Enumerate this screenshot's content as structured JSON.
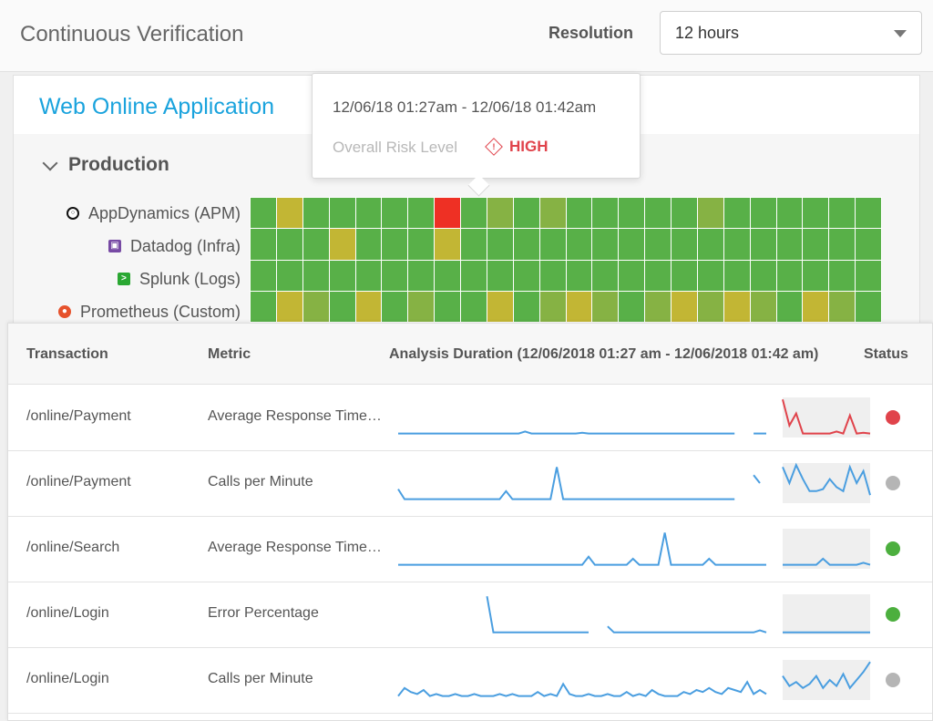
{
  "header": {
    "title": "Continuous Verification",
    "resolution_label": "Resolution",
    "resolution_value": "12 hours"
  },
  "application": {
    "name": "Web Online Application",
    "environment": "Production",
    "providers": [
      {
        "label": "AppDynamics (APM)",
        "icon": "appdynamics-icon"
      },
      {
        "label": "Datadog (Infra)",
        "icon": "datadog-icon"
      },
      {
        "label": "Splunk (Logs)",
        "icon": "splunk-icon"
      },
      {
        "label": "Prometheus (Custom)",
        "icon": "prometheus-icon"
      }
    ],
    "heatmap_rows": [
      "gygggggrglglggggglgggggg",
      "gggygggygggggggggggggggg",
      "gggggggggggggggggggggggg",
      "gylgyglggyglylglylylgylg"
    ],
    "heatmap_legend": {
      "g": "#58b048",
      "l": "#86b244",
      "y": "#c2b634",
      "r": "#ee3024"
    }
  },
  "tooltip": {
    "range": "12/06/18 01:27am - 12/06/18 01:42am",
    "risk_label": "Overall Risk Level",
    "risk_value": "HIGH"
  },
  "table": {
    "headers": {
      "transaction": "Transaction",
      "metric": "Metric",
      "duration": "Analysis Duration (12/06/2018 01:27 am - 12/06/2018 01:42 am)",
      "status": "Status"
    },
    "rows": [
      {
        "transaction": "/online/Payment",
        "metric": "Average Response Time…",
        "status": "#e0434b",
        "history": [
          0.1,
          0.1,
          0.1,
          0.1,
          0.1,
          0.1,
          0.1,
          0.1,
          0.1,
          0.1,
          0.1,
          0.1,
          0.1,
          0.1,
          0.1,
          0.1,
          0.1,
          0.1,
          0.1,
          0.1,
          0.15,
          0.1,
          0.1,
          0.1,
          0.1,
          0.1,
          0.1,
          0.1,
          0.1,
          0.12,
          0.1,
          0.1,
          0.1,
          0.1,
          0.1,
          0.1,
          0.1,
          0.1,
          0.1,
          0.1,
          0.1,
          0.1,
          0.1,
          0.1,
          0.1,
          0.1,
          0.1,
          0.1,
          0.1,
          0.1,
          0.1,
          0.1,
          0.1,
          0.1,
          null,
          null,
          0.1,
          0.1,
          0.1
        ],
        "current": [
          0.95,
          0.3,
          0.6,
          0.1,
          0.1,
          0.1,
          0.1,
          0.1,
          0.15,
          0.1,
          0.55,
          0.1,
          0.12,
          0.1
        ]
      },
      {
        "transaction": "/online/Payment",
        "metric": "Calls per Minute",
        "status": "#b5b5b5",
        "history": [
          0.35,
          0.1,
          0.1,
          0.1,
          0.1,
          0.1,
          0.1,
          0.1,
          0.1,
          0.1,
          0.1,
          0.1,
          0.1,
          0.1,
          0.1,
          0.1,
          0.1,
          0.3,
          0.1,
          0.1,
          0.1,
          0.1,
          0.1,
          0.1,
          0.1,
          0.9,
          0.1,
          0.1,
          0.1,
          0.1,
          0.1,
          0.1,
          0.1,
          0.1,
          0.1,
          0.1,
          0.1,
          0.1,
          0.1,
          0.1,
          0.1,
          0.1,
          0.1,
          0.1,
          0.1,
          0.1,
          0.1,
          0.1,
          0.1,
          0.1,
          0.1,
          0.1,
          0.1,
          0.1,
          null,
          null,
          0.7,
          0.5,
          null
        ],
        "current": [
          0.9,
          0.5,
          0.95,
          0.6,
          0.3,
          0.3,
          0.35,
          0.6,
          0.4,
          0.3,
          0.9,
          0.5,
          0.8,
          0.2
        ]
      },
      {
        "transaction": "/online/Search",
        "metric": "Average Response Time…",
        "status": "#4caf3e",
        "history": [
          0.1,
          0.1,
          0.1,
          0.1,
          0.1,
          0.1,
          0.1,
          0.1,
          0.1,
          0.1,
          0.1,
          0.1,
          0.1,
          0.1,
          0.1,
          0.1,
          0.1,
          0.1,
          0.1,
          0.1,
          0.1,
          0.1,
          0.1,
          0.1,
          0.1,
          0.1,
          0.1,
          0.1,
          0.1,
          0.1,
          0.3,
          0.1,
          0.1,
          0.1,
          0.1,
          0.1,
          0.1,
          0.25,
          0.1,
          0.1,
          0.1,
          0.1,
          0.9,
          0.1,
          0.1,
          0.1,
          0.1,
          0.1,
          0.1,
          0.25,
          0.1,
          0.1,
          0.1,
          0.1,
          0.1,
          0.1,
          0.1,
          0.1,
          0.1
        ],
        "current": [
          0.1,
          0.1,
          0.1,
          0.1,
          0.1,
          0.1,
          0.25,
          0.1,
          0.1,
          0.1,
          0.1,
          0.1,
          0.15,
          0.1
        ]
      },
      {
        "transaction": "/online/Login",
        "metric": "Error Percentage",
        "status": "#4caf3e",
        "history": [
          null,
          null,
          null,
          null,
          null,
          null,
          null,
          null,
          null,
          null,
          null,
          null,
          null,
          null,
          0.95,
          0.05,
          0.05,
          0.05,
          0.05,
          0.05,
          0.05,
          0.05,
          0.05,
          0.05,
          0.05,
          0.05,
          0.05,
          0.05,
          0.05,
          0.05,
          0.05,
          null,
          null,
          0.2,
          0.05,
          0.05,
          0.05,
          0.05,
          0.05,
          0.05,
          0.05,
          0.05,
          0.05,
          0.05,
          0.05,
          0.05,
          0.05,
          0.05,
          0.05,
          0.05,
          0.05,
          0.05,
          0.05,
          0.05,
          0.05,
          0.05,
          0.05,
          0.1,
          0.05
        ],
        "current": [
          0.05,
          0.05,
          0.05,
          0.05,
          0.05,
          0.05,
          0.05,
          0.05,
          0.05,
          0.05,
          0.05,
          0.05,
          0.05,
          0.05
        ]
      },
      {
        "transaction": "/online/Login",
        "metric": "Calls per Minute",
        "status": "#b5b5b5",
        "history": [
          0.1,
          0.3,
          0.2,
          0.15,
          0.25,
          0.1,
          0.15,
          0.1,
          0.1,
          0.15,
          0.1,
          0.1,
          0.15,
          0.1,
          0.1,
          0.1,
          0.15,
          0.1,
          0.15,
          0.1,
          0.1,
          0.1,
          0.2,
          0.1,
          0.15,
          0.1,
          0.4,
          0.15,
          0.1,
          0.1,
          0.15,
          0.1,
          0.1,
          0.15,
          0.1,
          0.1,
          0.2,
          0.1,
          0.15,
          0.1,
          0.25,
          0.15,
          0.1,
          0.1,
          0.1,
          0.2,
          0.15,
          0.25,
          0.2,
          0.3,
          0.2,
          0.15,
          0.3,
          0.25,
          0.2,
          0.45,
          0.15,
          0.25,
          0.15
        ],
        "current": [
          0.6,
          0.35,
          0.45,
          0.3,
          0.4,
          0.6,
          0.3,
          0.5,
          0.35,
          0.65,
          0.3,
          0.5,
          0.7,
          0.95
        ]
      }
    ]
  }
}
